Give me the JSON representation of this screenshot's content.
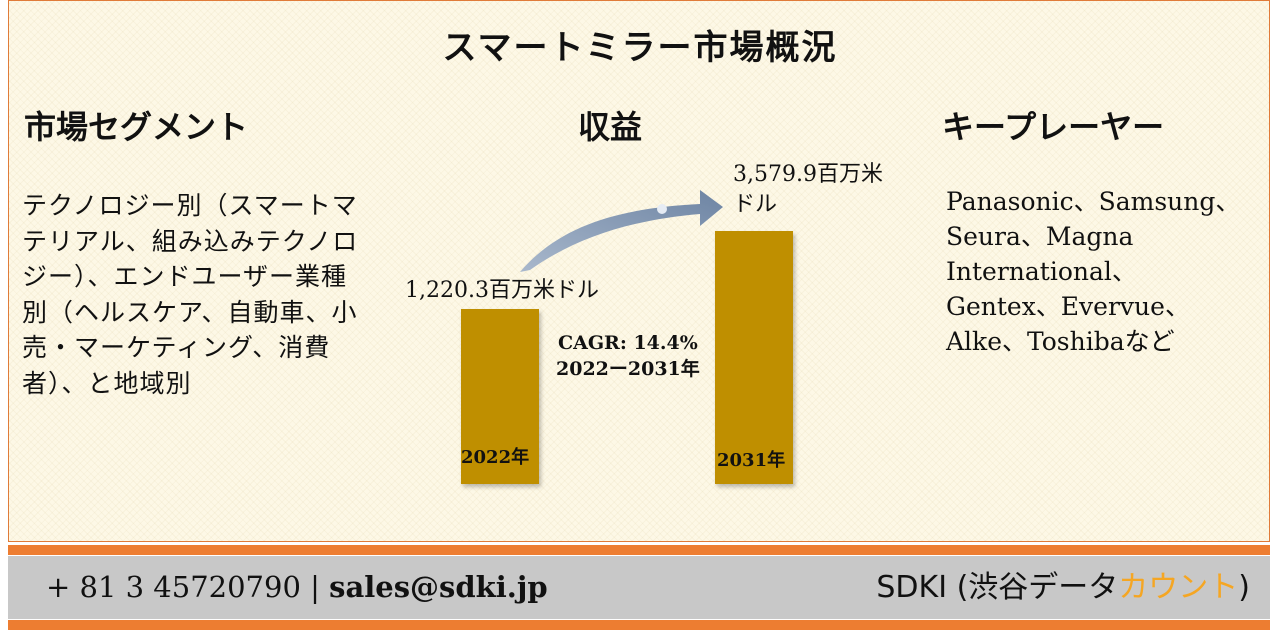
{
  "title": "スマートミラー市場概況",
  "headings": {
    "segment": "市場セグメント",
    "revenue": "収益",
    "key_players": "キープレーヤー"
  },
  "segment_text": "テクノロジー別（スマートマテリアル、組み込みテクノロジー）、エンドユーザー業種別（ヘルスケア、自動車、小売・マーケティング、消費者）、と地域別",
  "key_players_text": "Panasonic、Samsung、Seura、Magna International、Gentex、Evervue、Alke、Toshibaなど",
  "chart_data": {
    "type": "bar",
    "categories": [
      "2022年",
      "2031年"
    ],
    "values": [
      1220.3,
      3579.9
    ],
    "value_labels": [
      "1,220.3百万米ドル",
      "3,579.9百万米ドル"
    ],
    "annotation": [
      "CAGR: 14.4%",
      "2022ー2031年"
    ]
  },
  "footer": {
    "phone": "+ 81 3 45720790",
    "separator": "|",
    "email": "sales@sdki.jp",
    "brand_prefix": "SDKI (渋谷データ",
    "brand_accent": "カウント",
    "brand_suffix": ")"
  },
  "colors": {
    "bar": "#bf8f00",
    "accent_stripe": "#ed7d31",
    "footer_bg": "#c8c8c8",
    "brand_accent": "#f5a623",
    "arrow": "#8497b0"
  }
}
